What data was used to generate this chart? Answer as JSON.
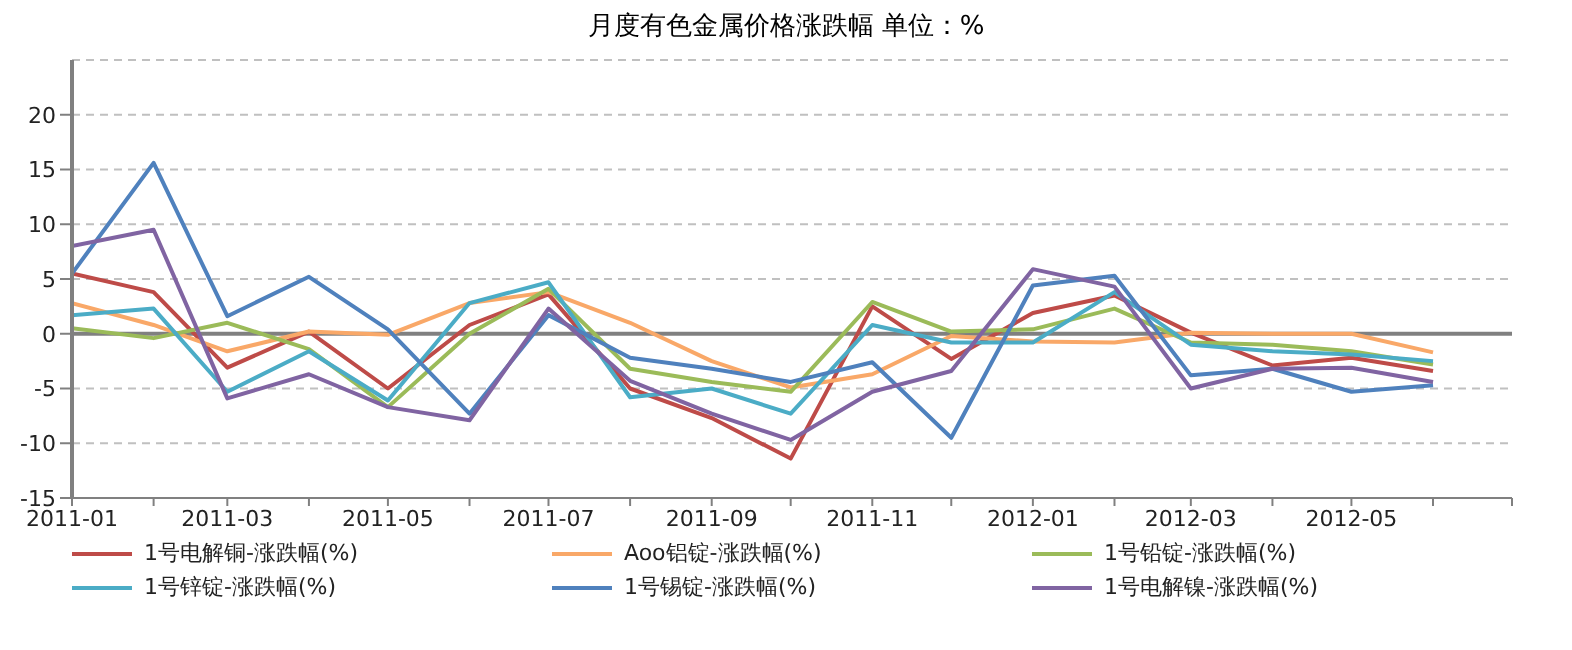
{
  "chart_data": {
    "type": "line",
    "title": "月度有色金属价格涨跌幅 单位：%",
    "x": [
      "2011-01",
      "2011-02",
      "2011-03",
      "2011-04",
      "2011-05",
      "2011-06",
      "2011-07",
      "2011-08",
      "2011-09",
      "2011-10",
      "2011-11",
      "2011-12",
      "2012-01",
      "2012-02",
      "2012-03",
      "2012-04",
      "2012-05",
      "2012-06"
    ],
    "series": [
      {
        "name": "1号电解铜-涨跌幅(%)",
        "color": "#be4b48",
        "values": [
          5.5,
          3.8,
          -3.1,
          0.2,
          -5.0,
          0.8,
          3.6,
          -5.0,
          -7.7,
          -11.4,
          2.5,
          -2.3,
          1.9,
          3.5,
          0.1,
          -2.9,
          -2.2,
          -3.4
        ]
      },
      {
        "name": "Aoo铝锭-涨跌幅(%)",
        "color": "#f9a868",
        "values": [
          2.8,
          0.8,
          -1.6,
          0.2,
          -0.1,
          2.8,
          3.8,
          1.0,
          -2.5,
          -4.9,
          -3.7,
          -0.2,
          -0.7,
          -0.8,
          0.1,
          0,
          0,
          -1.7
        ]
      },
      {
        "name": "1号铅锭-涨跌幅(%)",
        "color": "#9bbb59",
        "values": [
          0.5,
          -0.4,
          1.0,
          -1.4,
          -6.7,
          0,
          4.1,
          -3.2,
          -4.4,
          -5.3,
          2.9,
          0.2,
          0.4,
          2.3,
          -0.8,
          -1.0,
          -1.6,
          -2.8
        ]
      },
      {
        "name": "1号锌锭-涨跌幅(%)",
        "color": "#4bacc6",
        "values": [
          1.7,
          2.3,
          -5.3,
          -1.6,
          -6.1,
          2.8,
          4.7,
          -5.8,
          -5.0,
          -7.3,
          0.8,
          -0.8,
          -0.8,
          3.8,
          -1.0,
          -1.6,
          -1.9,
          -2.5
        ]
      },
      {
        "name": "1号锡锭-涨跌幅(%)",
        "color": "#4f81bd",
        "values": [
          5.5,
          15.6,
          1.6,
          5.2,
          0.4,
          -7.3,
          1.7,
          -2.2,
          -3.2,
          -4.4,
          -2.6,
          -9.5,
          4.4,
          5.3,
          -3.8,
          -3.2,
          -5.3,
          -4.7
        ]
      },
      {
        "name": "1号电解镍-涨跌幅(%)",
        "color": "#8064a2",
        "values": [
          8.0,
          9.5,
          -5.9,
          -3.7,
          -6.7,
          -7.9,
          2.3,
          -4.3,
          -7.3,
          -9.7,
          -5.3,
          -3.4,
          5.9,
          4.3,
          -5.0,
          -3.2,
          -3.1,
          -4.4
        ]
      }
    ],
    "xlim": [
      "2011-01",
      "2012-07"
    ],
    "xticks": [
      "2011-01",
      {
        "value": "2011-02",
        "label": null
      },
      "2011-03",
      {
        "value": "2011-04",
        "label": null
      },
      "2011-05",
      {
        "value": "2011-06",
        "label": null
      },
      "2011-07",
      {
        "value": "2011-08",
        "label": null
      },
      "2011-09",
      {
        "value": "2011-10",
        "label": null
      },
      "2011-11",
      {
        "value": "2011-12",
        "label": null
      },
      "2012-01",
      {
        "value": "2012-02",
        "label": null
      },
      "2012-03",
      {
        "value": "2012-04",
        "label": null
      },
      "2012-05",
      {
        "value": "2012-06",
        "label": null
      },
      {
        "value": "2012-07",
        "label": null
      }
    ],
    "ylim": [
      -15,
      25
    ],
    "yticks": [
      -15,
      -10,
      -5,
      0,
      5,
      10,
      15,
      20
    ],
    "ref_lines": [
      {
        "axis": "y",
        "value": 0,
        "color": "#808080"
      }
    ],
    "grid": "y",
    "legend": "bottom",
    "marker": "none",
    "line_style": "solid"
  }
}
